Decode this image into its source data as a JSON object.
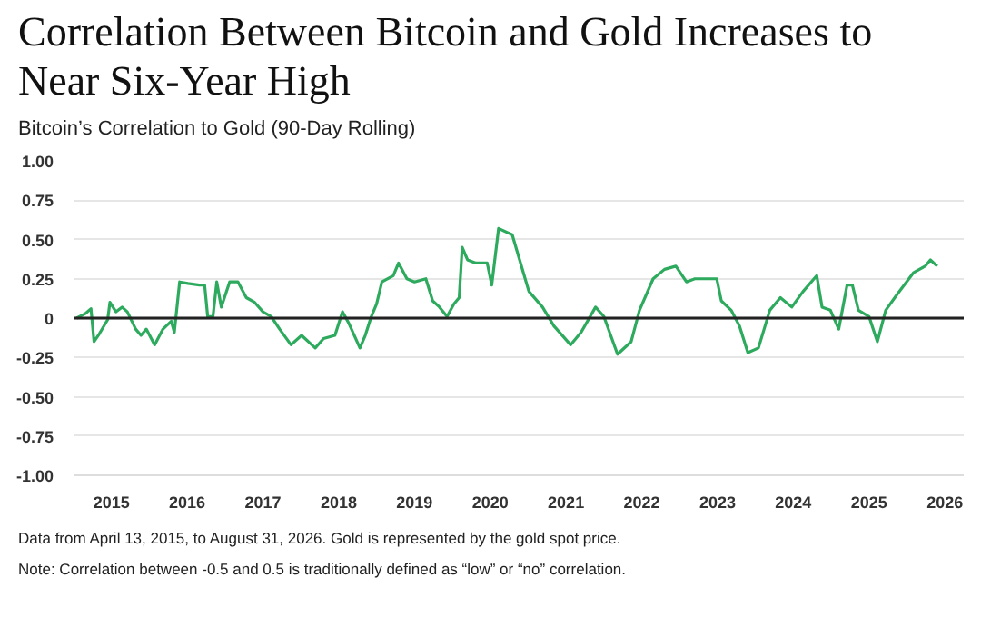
{
  "chart_data": {
    "type": "line",
    "title": "Correlation Between Bitcoin and Gold Increases to Near Six-Year High",
    "subtitle": "Bitcoin’s Correlation to Gold (90-Day Rolling)",
    "annotations": [
      "Data from April 13, 2015, to August 31, 2026. Gold is represented by the gold spot price.",
      "Note: Correlation between -0.5 and 0.5 is traditionally defined as “low” or “no” correlation."
    ],
    "x": [
      2015.04,
      2015.16,
      2015.23,
      2015.27,
      2015.34,
      2015.45,
      2015.48,
      2015.56,
      2015.64,
      2015.71,
      2015.82,
      2015.89,
      2015.96,
      2016.07,
      2016.18,
      2016.29,
      2016.33,
      2016.4,
      2016.51,
      2016.66,
      2016.73,
      2016.77,
      2016.84,
      2016.89,
      2016.95,
      2017.06,
      2017.17,
      2017.28,
      2017.39,
      2017.5,
      2017.61,
      2017.72,
      2017.87,
      2018.01,
      2018.19,
      2018.3,
      2018.45,
      2018.55,
      2018.63,
      2018.78,
      2018.85,
      2018.93,
      2019.0,
      2019.07,
      2019.22,
      2019.29,
      2019.4,
      2019.5,
      2019.65,
      2019.74,
      2019.83,
      2019.93,
      2020.02,
      2020.09,
      2020.13,
      2020.2,
      2020.31,
      2020.46,
      2020.52,
      2020.61,
      2020.79,
      2020.9,
      2021.01,
      2021.19,
      2021.34,
      2021.56,
      2021.7,
      2021.89,
      2022.0,
      2022.18,
      2022.36,
      2022.47,
      2022.65,
      2022.8,
      2022.95,
      2023.09,
      2023.2,
      2023.31,
      2023.49,
      2023.55,
      2023.68,
      2023.79,
      2023.9,
      2024.04,
      2024.19,
      2024.33,
      2024.48,
      2024.63,
      2024.81,
      2024.88,
      2024.99,
      2025.1,
      2025.21,
      2025.28,
      2025.36,
      2025.5,
      2025.61,
      2025.72,
      2025.87,
      2026.09,
      2026.24,
      2026.31,
      2026.4
    ],
    "series": [
      {
        "color": "#2eaa5e",
        "values": [
          0.0,
          0.03,
          0.06,
          -0.15,
          -0.1,
          -0.01,
          0.1,
          0.04,
          0.07,
          0.04,
          -0.07,
          -0.11,
          -0.07,
          -0.17,
          -0.07,
          -0.02,
          -0.09,
          0.23,
          0.22,
          0.21,
          0.21,
          0.01,
          0.01,
          0.23,
          0.07,
          0.23,
          0.23,
          0.13,
          0.1,
          0.04,
          0.01,
          -0.07,
          -0.17,
          -0.11,
          -0.19,
          -0.13,
          -0.11,
          0.04,
          -0.03,
          -0.19,
          -0.11,
          0.01,
          0.09,
          0.23,
          0.27,
          0.35,
          0.25,
          0.23,
          0.25,
          0.11,
          0.07,
          0.01,
          0.09,
          0.13,
          0.45,
          0.37,
          0.35,
          0.35,
          0.21,
          0.57,
          0.53,
          0.35,
          0.17,
          0.07,
          -0.05,
          -0.17,
          -0.09,
          0.07,
          0.01,
          -0.23,
          -0.15,
          0.05,
          0.25,
          0.31,
          0.33,
          0.23,
          0.25,
          0.25,
          0.25,
          0.11,
          0.05,
          -0.05,
          -0.22,
          -0.19,
          0.05,
          0.13,
          0.07,
          0.17,
          0.27,
          0.07,
          0.05,
          -0.07,
          0.21,
          0.21,
          0.05,
          0.01,
          -0.15,
          0.05,
          0.15,
          0.29,
          0.33,
          0.37,
          0.33
        ]
      }
    ],
    "xlim": [
      2015.0,
      2026.75
    ],
    "xticks": [
      {
        "value": 2015.5,
        "label": "2015"
      },
      {
        "value": 2016.5,
        "label": "2016"
      },
      {
        "value": 2017.5,
        "label": "2017"
      },
      {
        "value": 2018.5,
        "label": "2018"
      },
      {
        "value": 2019.5,
        "label": "2019"
      },
      {
        "value": 2020.5,
        "label": "2020"
      },
      {
        "value": 2021.5,
        "label": "2021"
      },
      {
        "value": 2022.5,
        "label": "2022"
      },
      {
        "value": 2023.5,
        "label": "2023"
      },
      {
        "value": 2024.5,
        "label": "2024"
      },
      {
        "value": 2025.5,
        "label": "2025"
      },
      {
        "value": 2026.5,
        "label": "2026"
      }
    ],
    "ylim": [
      -1.0,
      1.0
    ],
    "yticks": [
      {
        "value": -1.0,
        "label": "-1.00"
      },
      {
        "value": -0.75,
        "label": "-0.75"
      },
      {
        "value": -0.5,
        "label": "-0.50"
      },
      {
        "value": -0.25,
        "label": "-0.25"
      },
      0,
      {
        "value": 0.25,
        "label": "0.25"
      },
      {
        "value": 0.5,
        "label": "0.50"
      },
      {
        "value": 0.75,
        "label": "0.75"
      },
      {
        "value": 1.0,
        "label": "1.00"
      }
    ],
    "ref_lines": [
      {
        "axis": "y",
        "value": 0,
        "color": "#222222"
      }
    ],
    "grid": "y",
    "marker": "none",
    "line_style": "solid"
  }
}
